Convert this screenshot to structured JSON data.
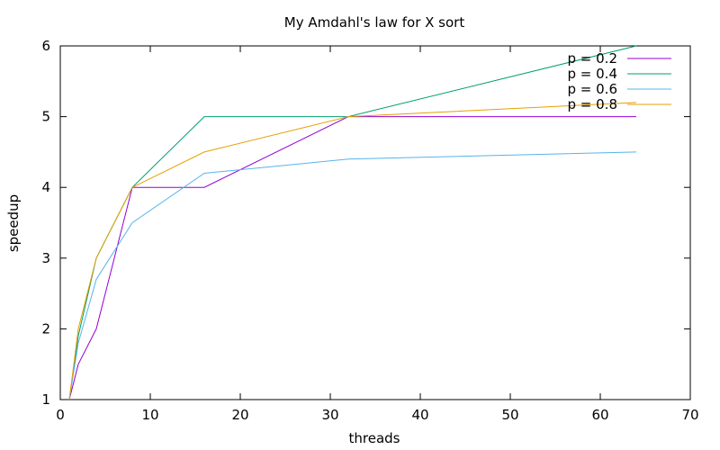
{
  "chart_data": {
    "type": "line",
    "title": "My Amdahl's law for X sort",
    "xlabel": "threads",
    "ylabel": "speedup",
    "xlim": [
      0,
      70
    ],
    "ylim": [
      1,
      6
    ],
    "x_ticks": [
      0,
      10,
      20,
      30,
      40,
      50,
      60,
      70
    ],
    "y_ticks": [
      1,
      2,
      3,
      4,
      5,
      6
    ],
    "grid": false,
    "legend_position": "top-right",
    "series": [
      {
        "name": "p = 0.2",
        "color": "#9400d3",
        "points": [
          [
            1,
            1
          ],
          [
            2,
            1.5
          ],
          [
            4,
            2
          ],
          [
            8,
            4
          ],
          [
            16,
            4
          ],
          [
            32,
            5
          ],
          [
            64,
            5
          ]
        ]
      },
      {
        "name": "p = 0.4",
        "color": "#009e73",
        "points": [
          [
            1,
            1
          ],
          [
            2,
            1.9
          ],
          [
            4,
            3
          ],
          [
            8,
            4
          ],
          [
            16,
            5
          ],
          [
            32,
            5
          ],
          [
            64,
            6
          ]
        ]
      },
      {
        "name": "p = 0.6",
        "color": "#56b4e9",
        "points": [
          [
            1,
            1
          ],
          [
            2,
            1.8
          ],
          [
            4,
            2.7
          ],
          [
            8,
            3.5
          ],
          [
            16,
            4.2
          ],
          [
            32,
            4.4
          ],
          [
            64,
            4.5
          ]
        ]
      },
      {
        "name": "p = 0.8",
        "color": "#e69f00",
        "points": [
          [
            1,
            1
          ],
          [
            2,
            2
          ],
          [
            4,
            3
          ],
          [
            8,
            4
          ],
          [
            16,
            4.5
          ],
          [
            32,
            5
          ],
          [
            64,
            5.2
          ]
        ]
      }
    ]
  }
}
